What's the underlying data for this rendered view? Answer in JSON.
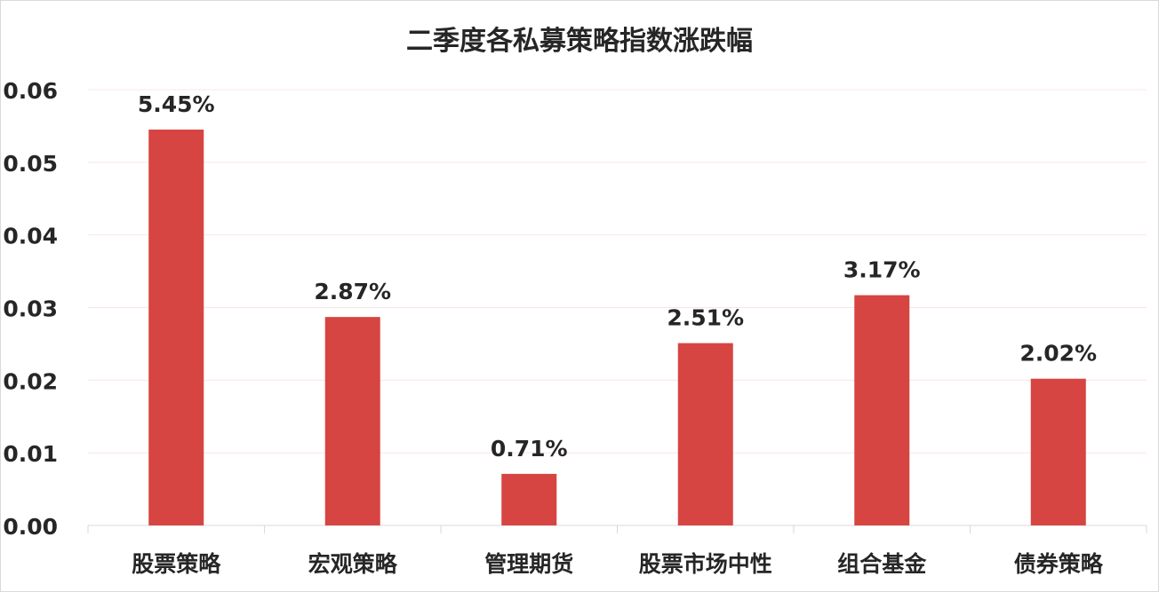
{
  "chart_data": {
    "type": "bar",
    "title": "二季度各私募策略指数涨跌幅",
    "categories": [
      "股票策略",
      "宏观策略",
      "管理期货",
      "股票市场中性",
      "组合基金",
      "债券策略"
    ],
    "values": [
      0.0545,
      0.0287,
      0.0071,
      0.0251,
      0.0317,
      0.0202
    ],
    "data_labels": [
      "5.45%",
      "2.87%",
      "0.71%",
      "2.51%",
      "3.17%",
      "2.02%"
    ],
    "ylim": [
      0,
      0.06
    ],
    "yticks": [
      "0.00",
      "0.01",
      "0.02",
      "0.03",
      "0.04",
      "0.05",
      "0.06"
    ],
    "xlabel": "",
    "ylabel": "",
    "grid": true,
    "legend": "none",
    "colors": {
      "bar": "#d64541",
      "grid": "#fbe4e4",
      "axis": "#d9d9d9"
    }
  }
}
